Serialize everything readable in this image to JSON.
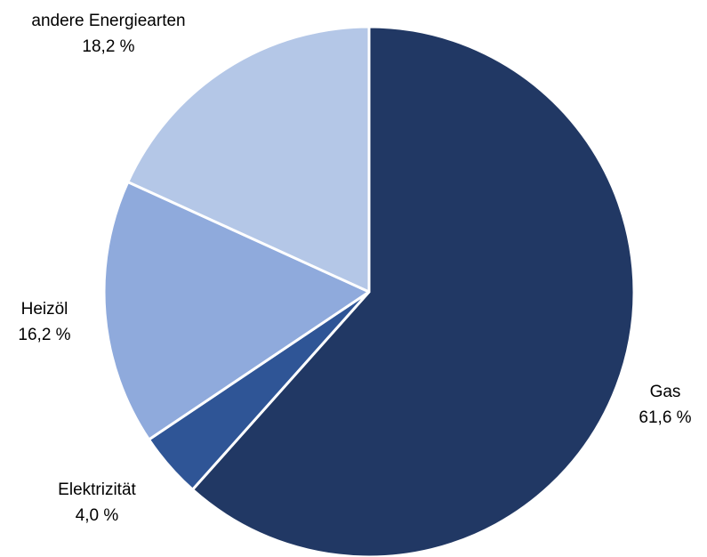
{
  "chart_data": {
    "type": "pie",
    "title": "",
    "slices": [
      {
        "label": "Gas",
        "value": 61.6,
        "value_label": "61,6 %",
        "color": "#213864",
        "label_side": "right"
      },
      {
        "label": "Elektrizität",
        "value": 4.0,
        "value_label": "4,0 %",
        "color": "#2f5596",
        "label_side": "left"
      },
      {
        "label": "Heizöl",
        "value": 16.2,
        "value_label": "16,2 %",
        "color": "#8faadc",
        "label_side": "left"
      },
      {
        "label": "andere Energiearten",
        "value": 18.2,
        "value_label": "18,2 %",
        "color": "#b4c7e7",
        "label_side": "left"
      }
    ],
    "start_angle": "12 o'clock",
    "direction": "clockwise",
    "legend": "none"
  }
}
